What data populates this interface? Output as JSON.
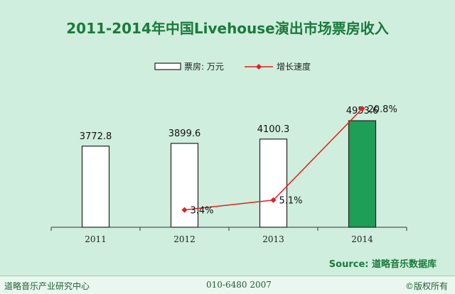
{
  "chart_data": {
    "type": "bar",
    "title": "2011-2014年中国Livehouse演出市场票房收入",
    "categories": [
      "2011",
      "2012",
      "2013",
      "2014"
    ],
    "series": [
      {
        "name": "票房: 万元",
        "type": "bar",
        "values": [
          3772.8,
          3899.6,
          4100.3,
          4953.6
        ],
        "labels": [
          "3772.8",
          "3899.6",
          "4100.3",
          "4953.6"
        ]
      },
      {
        "name": "增长速度",
        "type": "line",
        "values": [
          null,
          3.4,
          5.1,
          20.8
        ],
        "labels": [
          "",
          "3.4%",
          "5.1%",
          "20.8%"
        ],
        "unit": "%"
      }
    ],
    "legend": "top-center",
    "grid": false,
    "colors": {
      "bar": "#ffffff",
      "bar_highlight": "#1e9e56",
      "line": "#e02020",
      "title": "#1a7a3c"
    }
  },
  "source": "Source: 道略音乐数据库",
  "footer": {
    "left": "道略音乐产业研究中心",
    "middle": "010-6480 2007",
    "right": "©版权所有"
  }
}
